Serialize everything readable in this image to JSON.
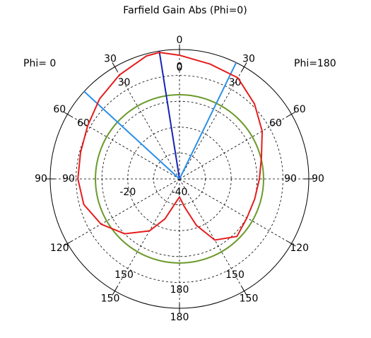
{
  "chart_data": {
    "type": "polar",
    "title": "Farfield Gain Abs (Phi=0)",
    "left_label": "Phi=  0",
    "right_label": "Phi=180",
    "rlim": [
      -40,
      10
    ],
    "rticks": [
      -40,
      -20,
      0
    ],
    "rminor": [
      -30,
      -10
    ],
    "angle_ticks": [
      0,
      30,
      60,
      90,
      120,
      150,
      180
    ],
    "inner_angle_ticks": [
      0,
      30,
      60,
      90,
      150,
      180
    ],
    "series": [
      {
        "color": "#e51d1d",
        "theta": [
          -180,
          -170,
          -160,
          -150,
          -135,
          -120,
          -105,
          -90,
          -75,
          -60,
          -45,
          -30,
          -15,
          -9,
          0,
          15,
          30,
          45,
          60,
          75,
          90,
          105,
          120,
          135,
          150,
          160,
          170,
          180
        ],
        "values": [
          -33,
          -30.4,
          -23.6,
          -16.8,
          -10,
          -5,
          -1.7,
          -0.7,
          -0.4,
          1.0,
          3.7,
          6.4,
          9.2,
          9.5,
          7.8,
          5.9,
          5.1,
          1.0,
          -3.1,
          -7.2,
          -9.1,
          -9.9,
          -9.9,
          -8.6,
          -12.7,
          -20.9,
          -29.1,
          -33
        ]
      }
    ],
    "reference_circle": {
      "color": "#6b9a2b",
      "value": -7.5
    },
    "direction_lines": [
      {
        "color": "#1424b4",
        "theta": -9
      },
      {
        "color": "#2b90ea",
        "theta": -47.5
      },
      {
        "color": "#2b90ea",
        "theta": 26
      }
    ]
  }
}
